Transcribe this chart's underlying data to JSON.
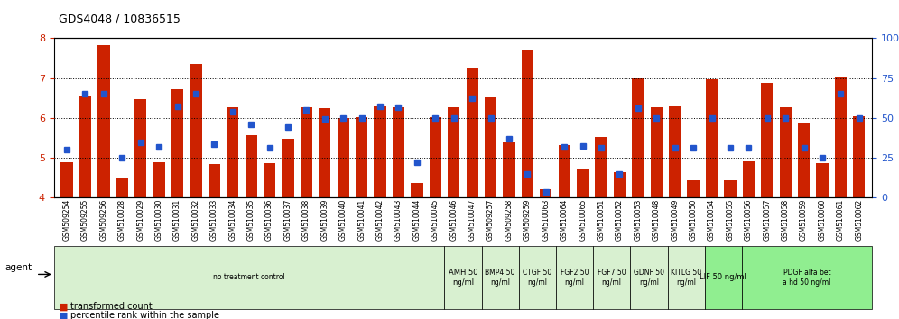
{
  "title": "GDS4048 / 10836515",
  "bar_color": "#CC2200",
  "dot_color": "#2255CC",
  "ylim": [
    4,
    8
  ],
  "y2lim": [
    0,
    100
  ],
  "yticks": [
    4,
    5,
    6,
    7,
    8
  ],
  "y2ticks": [
    0,
    25,
    50,
    75,
    100
  ],
  "samples": [
    "GSM509254",
    "GSM509255",
    "GSM509256",
    "GSM510028",
    "GSM510029",
    "GSM510030",
    "GSM510031",
    "GSM510032",
    "GSM510033",
    "GSM510034",
    "GSM510035",
    "GSM510036",
    "GSM510037",
    "GSM510038",
    "GSM510039",
    "GSM510040",
    "GSM510041",
    "GSM510042",
    "GSM510043",
    "GSM510044",
    "GSM510045",
    "GSM510046",
    "GSM510047",
    "GSM509257",
    "GSM509258",
    "GSM509259",
    "GSM510063",
    "GSM510064",
    "GSM510065",
    "GSM510051",
    "GSM510052",
    "GSM510053",
    "GSM510048",
    "GSM510049",
    "GSM510050",
    "GSM510054",
    "GSM510055",
    "GSM510056",
    "GSM510057",
    "GSM510058",
    "GSM510059",
    "GSM510060",
    "GSM510061",
    "GSM510062"
  ],
  "bar_values": [
    4.9,
    6.55,
    7.82,
    4.5,
    6.48,
    4.9,
    6.72,
    7.35,
    4.85,
    6.27,
    5.58,
    4.87,
    5.48,
    6.26,
    6.25,
    6.0,
    6.03,
    6.3,
    6.28,
    4.37,
    6.03,
    6.28,
    7.26,
    6.53,
    5.38,
    7.72,
    4.21,
    5.32,
    4.72,
    5.52,
    4.65,
    7.0,
    6.28,
    6.3,
    4.45,
    6.98,
    4.45,
    4.92,
    6.87,
    6.27,
    5.88,
    4.87,
    7.01,
    6.05
  ],
  "dot_values": [
    5.2,
    6.62,
    6.6,
    5.0,
    5.4,
    5.28,
    6.3,
    6.6,
    5.35,
    6.15,
    5.85,
    5.25,
    5.78,
    6.2,
    5.97,
    6.0,
    6.0,
    6.3,
    6.28,
    4.9,
    6.0,
    6.0,
    6.5,
    6.0,
    5.47,
    4.6,
    4.15,
    5.28,
    5.3,
    5.25,
    4.6,
    6.25,
    6.0,
    5.25,
    5.25,
    6.0,
    5.25,
    5.25,
    6.0,
    6.0,
    5.25,
    5.0,
    6.6,
    6.0
  ],
  "agent_groups": [
    {
      "label": "no treatment control",
      "start": 0,
      "end": 21,
      "color": "#d8f0d0"
    },
    {
      "label": "AMH 50\nng/ml",
      "start": 21,
      "end": 23,
      "color": "#d8f0d0"
    },
    {
      "label": "BMP4 50\nng/ml",
      "start": 23,
      "end": 25,
      "color": "#d8f0d0"
    },
    {
      "label": "CTGF 50\nng/ml",
      "start": 25,
      "end": 27,
      "color": "#d8f0d0"
    },
    {
      "label": "FGF2 50\nng/ml",
      "start": 27,
      "end": 29,
      "color": "#d8f0d0"
    },
    {
      "label": "FGF7 50\nng/ml",
      "start": 29,
      "end": 31,
      "color": "#d8f0d0"
    },
    {
      "label": "GDNF 50\nng/ml",
      "start": 31,
      "end": 33,
      "color": "#d8f0d0"
    },
    {
      "label": "KITLG 50\nng/ml",
      "start": 33,
      "end": 35,
      "color": "#d8f0d0"
    },
    {
      "label": "LIF 50 ng/ml",
      "start": 35,
      "end": 37,
      "color": "#90ee90"
    },
    {
      "label": "PDGF alfa bet\na hd 50 ng/ml",
      "start": 37,
      "end": 44,
      "color": "#90ee90"
    }
  ],
  "legend": [
    {
      "label": "transformed count",
      "color": "#CC2200"
    },
    {
      "label": "percentile rank within the sample",
      "color": "#2255CC"
    }
  ]
}
